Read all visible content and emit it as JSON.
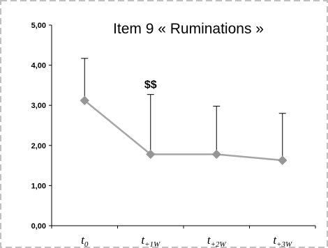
{
  "chart_data": {
    "type": "line",
    "title": "Item 9 « Ruminations »",
    "xlabel": "",
    "ylabel": "",
    "categories": [
      {
        "main": "t",
        "sub": "0"
      },
      {
        "main": "t",
        "sub": "+1W"
      },
      {
        "main": "t",
        "sub": "+2W"
      },
      {
        "main": "t",
        "sub": "+3W"
      }
    ],
    "series": [
      {
        "values": [
          3.12,
          1.78,
          1.78,
          1.63
        ],
        "error_upper": [
          4.17,
          3.27,
          2.98,
          2.8
        ]
      }
    ],
    "ylim": [
      0,
      5
    ],
    "yticks": [
      "0,00",
      "1,00",
      "2,00",
      "3,00",
      "4,00",
      "5,00"
    ],
    "annotations": [
      {
        "text": "$$",
        "category_index": 1
      }
    ],
    "grid": false,
    "colors": {
      "line": "#a6a6a6",
      "marker": "#969696",
      "error_bar": "#000000",
      "border": "#c0c0c0",
      "axis": "#000000"
    }
  }
}
